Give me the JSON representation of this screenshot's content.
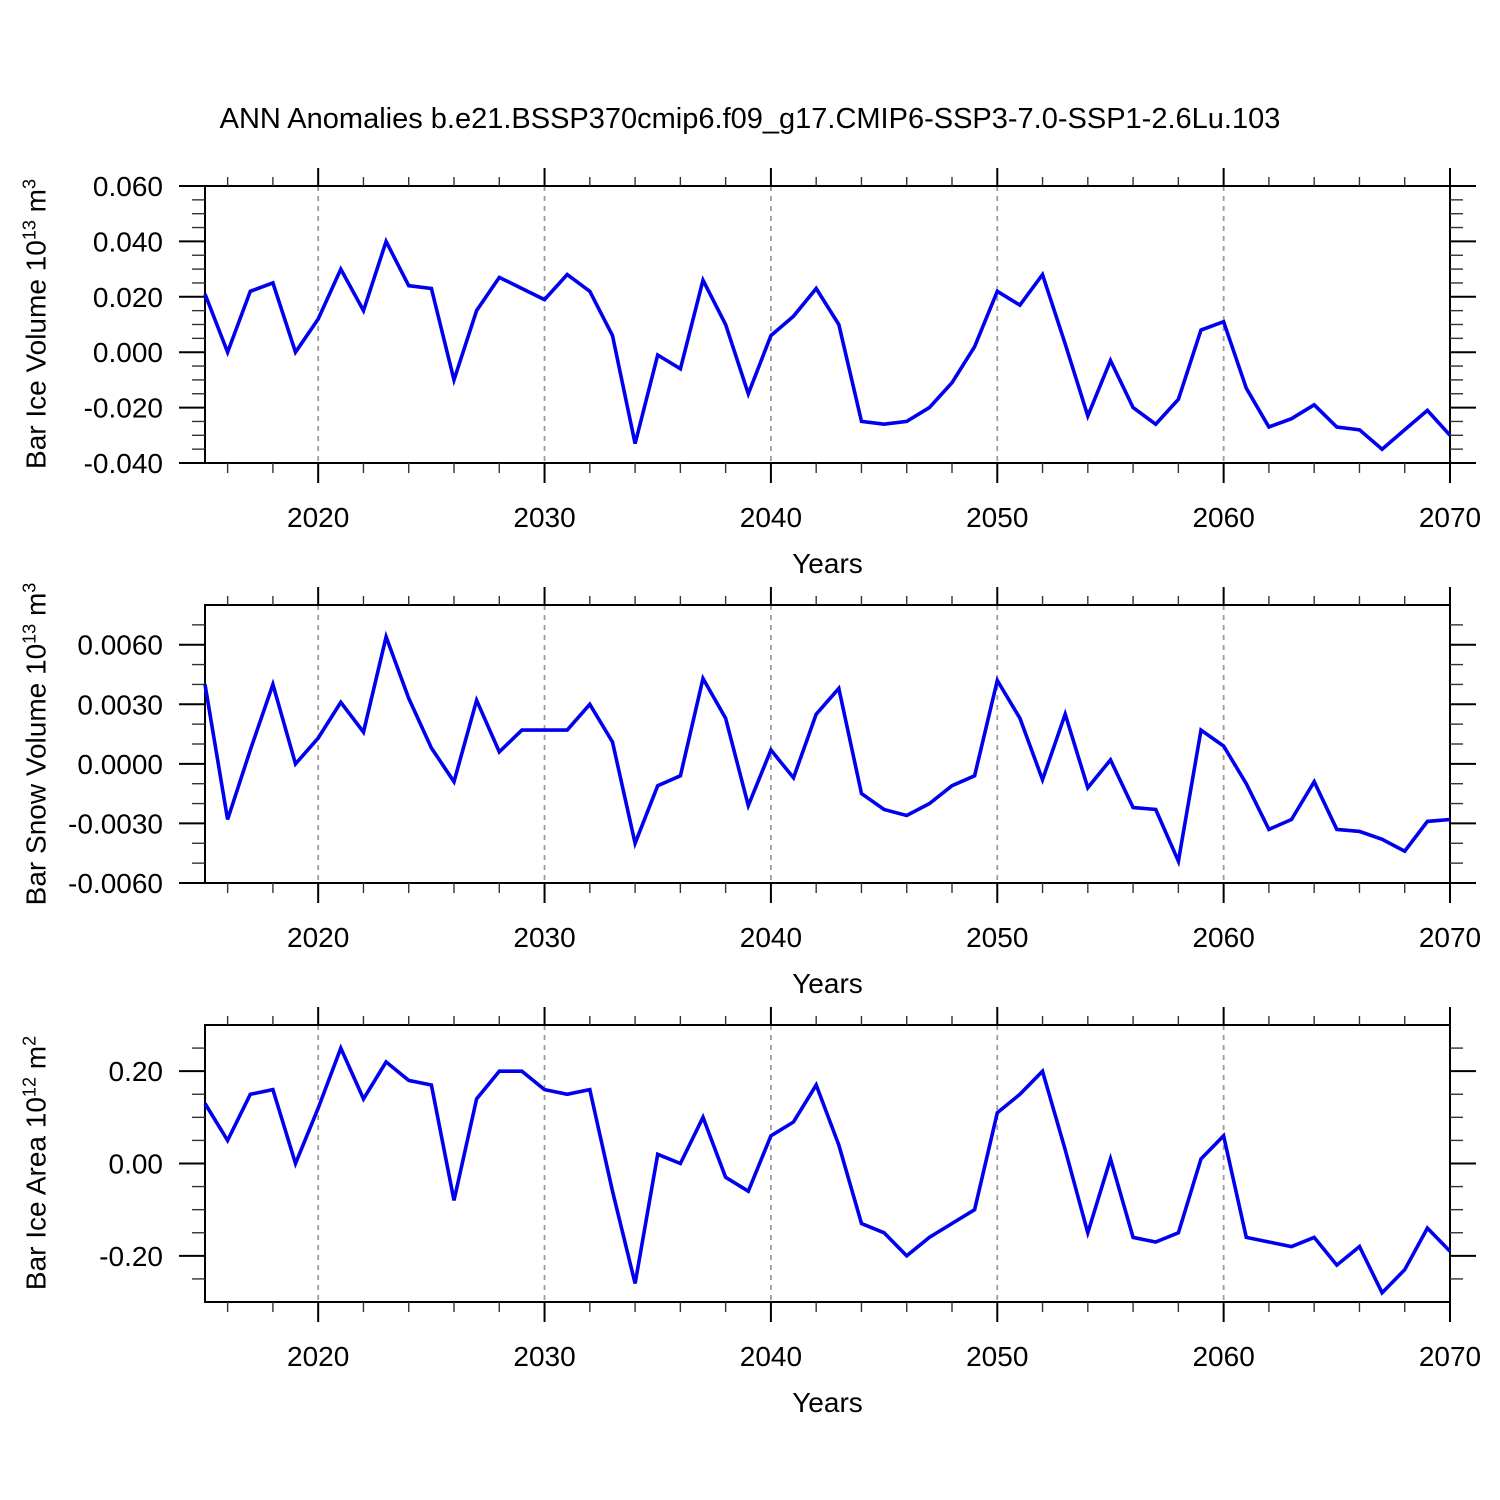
{
  "title": "ANN Anomalies b.e21.BSSP370cmip6.f09_g17.CMIP6-SSP3-7.0-SSP1-2.6Lu.103",
  "colors": {
    "line": "#0000ee",
    "grid": "#9c9c9c",
    "axis": "#000000",
    "text": "#000000"
  },
  "x_axis": {
    "label": "Years",
    "start_year": 2015,
    "end_year": 2070,
    "major_ticks": [
      2020,
      2030,
      2040,
      2050,
      2060,
      2070
    ],
    "minor_tick_step_years": 2,
    "gridline_years": [
      2020,
      2030,
      2040,
      2050,
      2060
    ]
  },
  "chart_data": [
    {
      "type": "line",
      "panel": "bar_ice_volume",
      "y_label": {
        "prefix": "Bar Ice Volume 10",
        "exponent": "13",
        "unit": " m",
        "unit_exponent": "3"
      },
      "ylim": [
        -0.04,
        0.06
      ],
      "y_major_tick_labels": [
        "0.060",
        "0.040",
        "0.020",
        "0.000",
        "-0.020",
        "-0.040"
      ],
      "y_minor_tick_step": 0.005,
      "x_start_year": 2015,
      "values": [
        0.021,
        0.0,
        0.022,
        0.025,
        0.0,
        0.012,
        0.03,
        0.015,
        0.04,
        0.024,
        0.023,
        -0.01,
        0.015,
        0.027,
        0.023,
        0.019,
        0.028,
        0.022,
        0.006,
        -0.033,
        -0.001,
        -0.006,
        0.026,
        0.01,
        -0.015,
        0.006,
        0.013,
        0.023,
        0.01,
        -0.025,
        -0.026,
        -0.025,
        -0.02,
        -0.011,
        0.002,
        0.022,
        0.017,
        0.028,
        0.003,
        -0.023,
        -0.003,
        -0.02,
        -0.026,
        -0.017,
        0.008,
        0.011,
        -0.013,
        -0.027,
        -0.024,
        -0.019,
        -0.027,
        -0.028,
        -0.035,
        -0.028,
        -0.021,
        -0.03
      ]
    },
    {
      "type": "line",
      "panel": "bar_snow_volume",
      "y_label": {
        "prefix": "Bar Snow Volume 10",
        "exponent": "13",
        "unit": " m",
        "unit_exponent": "3"
      },
      "ylim": [
        -0.006,
        0.008
      ],
      "y_major_tick_labels": [
        "0.0060",
        "0.0030",
        "0.0000",
        "-0.0030",
        "-0.0060"
      ],
      "y_minor_tick_step": 0.001,
      "x_start_year": 2015,
      "values": [
        0.004,
        -0.0028,
        0.0007,
        0.004,
        0.0,
        0.0013,
        0.0031,
        0.0016,
        0.0064,
        0.0033,
        0.0008,
        -0.0009,
        0.0032,
        0.0006,
        0.0017,
        0.0017,
        0.0017,
        0.003,
        0.0011,
        -0.004,
        -0.0011,
        -0.0006,
        0.0043,
        0.0023,
        -0.0021,
        0.0007,
        -0.0007,
        0.0025,
        0.0038,
        -0.0015,
        -0.0023,
        -0.0026,
        -0.002,
        -0.0011,
        -0.0006,
        0.0042,
        0.0023,
        -0.0008,
        0.0025,
        -0.0012,
        0.0002,
        -0.0022,
        -0.0023,
        -0.0049,
        0.0017,
        0.0009,
        -0.001,
        -0.0033,
        -0.0028,
        -0.0009,
        -0.0033,
        -0.0034,
        -0.0038,
        -0.0044,
        -0.0029,
        -0.0028
      ]
    },
    {
      "type": "line",
      "panel": "bar_ice_area",
      "y_label": {
        "prefix": "Bar Ice Area 10",
        "exponent": "12",
        "unit": " m",
        "unit_exponent": "2"
      },
      "ylim": [
        -0.3,
        0.3
      ],
      "y_major_tick_labels": [
        "0.20",
        "0.00",
        "-0.20"
      ],
      "y_minor_tick_step": 0.05,
      "x_start_year": 2015,
      "values": [
        0.13,
        0.05,
        0.15,
        0.16,
        0.0,
        0.12,
        0.25,
        0.14,
        0.22,
        0.18,
        0.17,
        -0.08,
        0.14,
        0.2,
        0.2,
        0.16,
        0.15,
        0.16,
        -0.06,
        -0.26,
        0.02,
        0.0,
        0.1,
        -0.03,
        -0.06,
        0.06,
        0.09,
        0.17,
        0.04,
        -0.13,
        -0.15,
        -0.2,
        -0.16,
        -0.13,
        -0.1,
        0.11,
        0.15,
        0.2,
        0.03,
        -0.15,
        0.01,
        -0.16,
        -0.17,
        -0.15,
        0.01,
        0.06,
        -0.16,
        -0.17,
        -0.18,
        -0.16,
        -0.22,
        -0.18,
        -0.28,
        -0.23,
        -0.14,
        -0.19
      ]
    }
  ]
}
